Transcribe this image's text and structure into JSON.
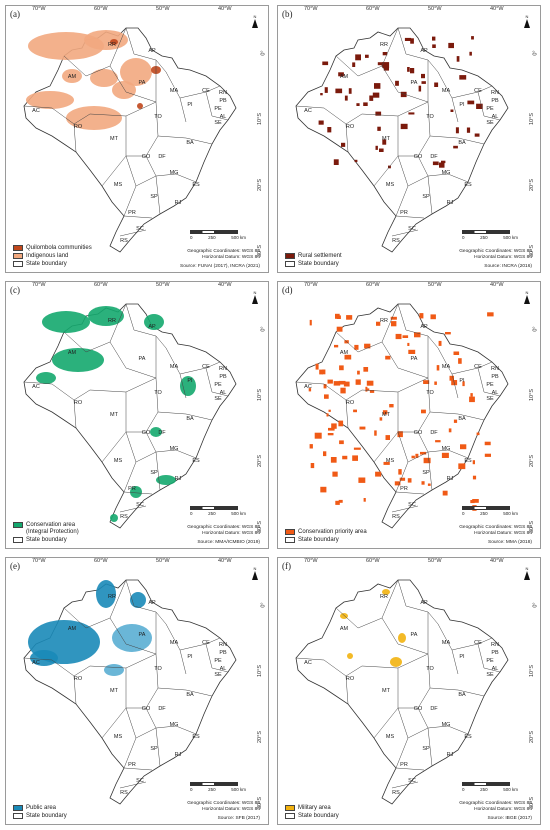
{
  "coordinates": {
    "lon": [
      "70°W",
      "60°W",
      "50°W",
      "40°W"
    ],
    "lat": [
      "0°",
      "10°S",
      "20°S",
      "30°S"
    ]
  },
  "north_label": "N",
  "states": [
    "RR",
    "AP",
    "AM",
    "PA",
    "MA",
    "CE",
    "RN",
    "PB",
    "PE",
    "AL",
    "SE",
    "PI",
    "AC",
    "RO",
    "TO",
    "BA",
    "MT",
    "GO",
    "DF",
    "MG",
    "ES",
    "MS",
    "SP",
    "RJ",
    "PR",
    "SC",
    "RS"
  ],
  "scale": {
    "ticks": [
      "0",
      "250",
      "500 km"
    ]
  },
  "georef": {
    "coords": "Geographic Coordinates: WGS 84",
    "datum": "Horizontal Datum: WGS 84"
  },
  "panels": [
    {
      "id": "a",
      "label": "(a)",
      "source": "Source: FUNAI (2017), INCRA (2021)",
      "legend": [
        {
          "text": "Quilombola communities",
          "color": "#c0471c"
        },
        {
          "text": "Indigenous land",
          "color": "#f2a97f"
        },
        {
          "text": "State boundary",
          "color": "#ffffff"
        }
      ]
    },
    {
      "id": "b",
      "label": "(b)",
      "source": "Source: INCRA (2016)",
      "legend": [
        {
          "text": "Rural settlement",
          "color": "#7b1a0c"
        },
        {
          "text": "State boundary",
          "color": "#ffffff"
        }
      ]
    },
    {
      "id": "c",
      "label": "(c)",
      "source": "Source: MMA/ICMBIO (2019)",
      "legend": [
        {
          "text": "Conservation area\n(Integral Protection)",
          "color": "#14a86e"
        },
        {
          "text": "State boundary",
          "color": "#ffffff"
        }
      ]
    },
    {
      "id": "d",
      "label": "(d)",
      "source": "Source: MMA (2018)",
      "legend": [
        {
          "text": "Conservation priority area",
          "color": "#f05a16"
        },
        {
          "text": "State boundary",
          "color": "#ffffff"
        }
      ]
    },
    {
      "id": "e",
      "label": "(e)",
      "source": "Source: SFB (2017)",
      "legend": [
        {
          "text": "Public area",
          "color": "#1a8ab8"
        },
        {
          "text": "State boundary",
          "color": "#ffffff"
        }
      ]
    },
    {
      "id": "f",
      "label": "(f)",
      "source": "Source: IBGE (2017)",
      "legend": [
        {
          "text": "Military area",
          "color": "#f2b20f"
        },
        {
          "text": "State boundary",
          "color": "#ffffff"
        }
      ]
    }
  ]
}
